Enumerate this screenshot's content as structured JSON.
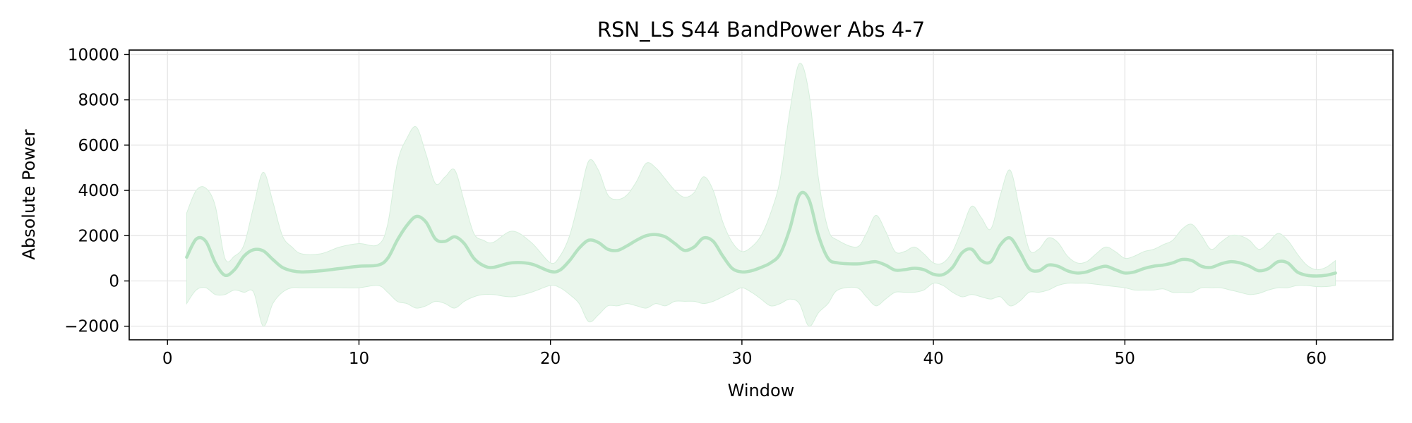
{
  "chart_data": {
    "type": "line",
    "title": "RSN_LS S44 BandPower Abs 4-7",
    "xlabel": "Window",
    "ylabel": "Absolute Power",
    "xlim": [
      -2,
      64
    ],
    "ylim": [
      -2600,
      10200
    ],
    "grid": true,
    "x_ticks": [
      0,
      10,
      20,
      30,
      40,
      50,
      60
    ],
    "x_tick_labels": [
      "0",
      "10",
      "20",
      "30",
      "40",
      "50",
      "60"
    ],
    "y_ticks": [
      -2000,
      0,
      2000,
      4000,
      6000,
      8000,
      10000
    ],
    "y_tick_labels": [
      "−2000",
      "0",
      "2000",
      "4000",
      "6000",
      "8000",
      "10000"
    ],
    "colors": {
      "line": "#b5e2c1",
      "band": "#eaf6ec",
      "band_edge": "#d6efdc",
      "grid": "#e6e6e6"
    },
    "series": [
      {
        "x": [
          1,
          1.5,
          2,
          2.5,
          3,
          3.5,
          4,
          4.5,
          5,
          5.5,
          6,
          6.5,
          7,
          8,
          9,
          10,
          11,
          11.5,
          12,
          12.5,
          13,
          13.5,
          14,
          14.5,
          15,
          15.5,
          16,
          16.5,
          17,
          18,
          19,
          20,
          20.5,
          21,
          21.5,
          22,
          22.5,
          23,
          23.5,
          24,
          24.5,
          25,
          25.5,
          26,
          26.5,
          27,
          27.5,
          28,
          28.5,
          29,
          29.5,
          30,
          30.5,
          31,
          31.5,
          32,
          32.5,
          33,
          33.5,
          34,
          34.5,
          35,
          36,
          36.5,
          37,
          37.5,
          38,
          38.5,
          39,
          39.5,
          40,
          40.5,
          41,
          41.5,
          42,
          42.5,
          43,
          43.5,
          44,
          44.5,
          45,
          45.5,
          46,
          46.5,
          47,
          47.5,
          48,
          48.5,
          49,
          49.5,
          50,
          50.5,
          51,
          51.5,
          52,
          52.5,
          53,
          53.5,
          54,
          54.5,
          55,
          55.5,
          56,
          56.5,
          57,
          57.5,
          58,
          58.5,
          59,
          59.5,
          60,
          60.5,
          61
        ],
        "mean": [
          1050,
          1850,
          1750,
          800,
          250,
          500,
          1100,
          1380,
          1330,
          950,
          600,
          450,
          400,
          450,
          550,
          650,
          700,
          1000,
          1800,
          2450,
          2850,
          2600,
          1850,
          1750,
          1950,
          1650,
          1000,
          680,
          600,
          800,
          750,
          420,
          480,
          900,
          1450,
          1800,
          1700,
          1400,
          1350,
          1550,
          1800,
          2000,
          2050,
          1950,
          1650,
          1350,
          1500,
          1900,
          1750,
          1100,
          550,
          400,
          450,
          600,
          800,
          1200,
          2300,
          3800,
          3600,
          2000,
          1000,
          800,
          750,
          800,
          850,
          700,
          480,
          500,
          560,
          500,
          300,
          280,
          600,
          1250,
          1400,
          900,
          850,
          1600,
          1900,
          1300,
          550,
          450,
          700,
          650,
          450,
          350,
          400,
          550,
          650,
          500,
          350,
          400,
          550,
          650,
          700,
          800,
          950,
          900,
          650,
          600,
          750,
          850,
          800,
          650,
          450,
          550,
          850,
          800,
          400,
          250,
          220,
          250,
          350
        ],
        "upper": [
          3000,
          4000,
          4100,
          3300,
          1000,
          1100,
          1600,
          3300,
          4800,
          3500,
          2000,
          1500,
          1200,
          1200,
          1500,
          1650,
          1600,
          2500,
          5200,
          6300,
          6800,
          5600,
          4300,
          4600,
          4900,
          3500,
          2100,
          1800,
          1700,
          2200,
          1700,
          800,
          1100,
          2000,
          3600,
          5300,
          4900,
          3800,
          3600,
          3800,
          4400,
          5200,
          5000,
          4500,
          4000,
          3700,
          3900,
          4600,
          4000,
          2600,
          1700,
          1300,
          1500,
          2000,
          3000,
          4500,
          7500,
          9600,
          8300,
          4500,
          2300,
          1800,
          1500,
          2100,
          2900,
          2200,
          1300,
          1300,
          1500,
          1200,
          800,
          800,
          1300,
          2300,
          3300,
          2800,
          2300,
          3800,
          4900,
          3200,
          1400,
          1400,
          1900,
          1700,
          1100,
          800,
          850,
          1200,
          1500,
          1300,
          1000,
          1100,
          1300,
          1400,
          1600,
          1800,
          2300,
          2500,
          2000,
          1400,
          1700,
          2000,
          2000,
          1800,
          1400,
          1700,
          2100,
          1800,
          1200,
          700,
          500,
          600,
          900
        ],
        "lower": [
          -1000,
          -400,
          -300,
          -600,
          -600,
          -400,
          -500,
          -500,
          -2000,
          -1000,
          -500,
          -300,
          -300,
          -300,
          -300,
          -300,
          -200,
          -500,
          -900,
          -1000,
          -1200,
          -1100,
          -900,
          -1000,
          -1200,
          -900,
          -700,
          -600,
          -600,
          -700,
          -500,
          -200,
          -300,
          -600,
          -1000,
          -1800,
          -1500,
          -1100,
          -1100,
          -1000,
          -1100,
          -1200,
          -1000,
          -1100,
          -900,
          -900,
          -900,
          -1000,
          -900,
          -700,
          -500,
          -300,
          -500,
          -800,
          -1100,
          -1000,
          -800,
          -1000,
          -2000,
          -1400,
          -1000,
          -400,
          -300,
          -700,
          -1100,
          -800,
          -500,
          -500,
          -500,
          -400,
          -100,
          -200,
          -500,
          -700,
          -600,
          -700,
          -800,
          -700,
          -1100,
          -900,
          -500,
          -500,
          -400,
          -200,
          -100,
          -100,
          -100,
          -150,
          -200,
          -250,
          -300,
          -400,
          -400,
          -400,
          -350,
          -500,
          -500,
          -500,
          -300,
          -300,
          -300,
          -400,
          -500,
          -600,
          -550,
          -400,
          -300,
          -300,
          -200,
          -200,
          -250,
          -250,
          -200
        ]
      }
    ]
  }
}
